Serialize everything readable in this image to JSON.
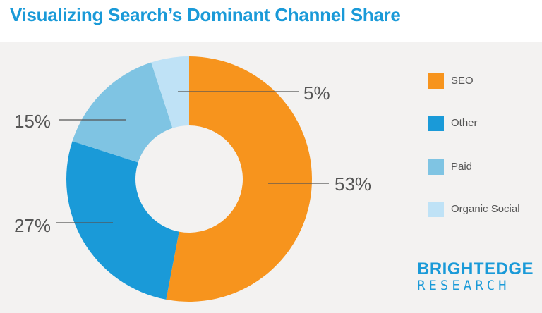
{
  "title": "Visualizing Search’s Dominant Channel Share",
  "brand": {
    "line1": "BRIGHTEDGE",
    "line2": "RESEARCH"
  },
  "chart_data": {
    "type": "pie",
    "donut": true,
    "categories": [
      "SEO",
      "Other",
      "Paid",
      "Organic Social"
    ],
    "values": [
      53,
      27,
      15,
      5
    ],
    "value_labels": [
      "53%",
      "27%",
      "15%",
      "5%"
    ],
    "colors": [
      "#f7941d",
      "#1a9ad8",
      "#7fc4e3",
      "#bfe2f6"
    ],
    "legend": {
      "position": "right",
      "entries": [
        "SEO",
        "Other",
        "Paid",
        "Organic Social"
      ]
    },
    "title": "Visualizing Search’s Dominant Channel Share"
  }
}
